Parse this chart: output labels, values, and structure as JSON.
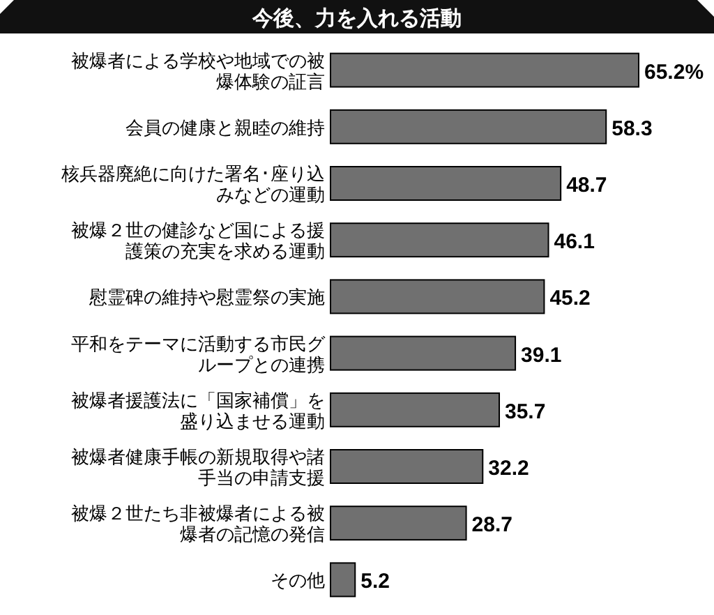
{
  "chart_data": {
    "type": "bar",
    "orientation": "horizontal",
    "title": "今後、力を入れる活動",
    "categories": [
      "被爆者による学校や地域での被爆体験の証言",
      "会員の健康と親睦の維持",
      "核兵器廃絶に向けた署名･座り込みなどの運動",
      "被爆２世の健診など国による援護策の充実を求める運動",
      "慰霊碑の維持や慰霊祭の実施",
      "平和をテーマに活動する市民グループとの連携",
      "被爆者援護法に「国家補償」を盛り込ませる運動",
      "被爆者健康手帳の新規取得や諸手当の申請支援",
      "被爆２世たち非被爆者による被爆者の記憶の発信",
      "その他"
    ],
    "values": [
      65.2,
      58.3,
      48.7,
      46.1,
      45.2,
      39.1,
      35.7,
      32.2,
      28.7,
      5.2
    ],
    "value_labels": [
      "65.2%",
      "58.3",
      "48.7",
      "46.1",
      "45.2",
      "39.1",
      "35.7",
      "32.2",
      "28.7",
      "5.2"
    ],
    "color": "#707070"
  }
}
